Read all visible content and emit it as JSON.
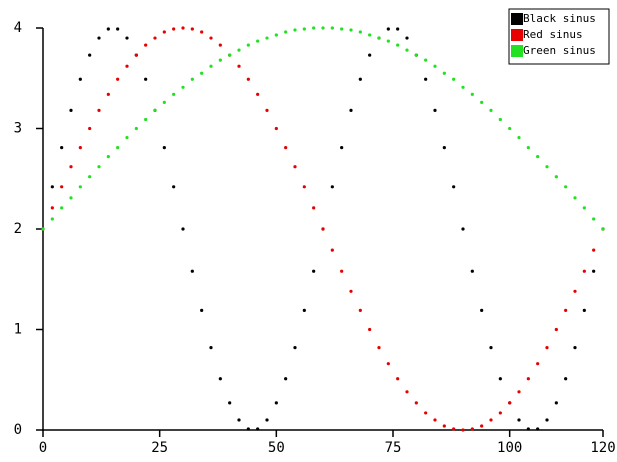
{
  "chart_data": {
    "type": "scatter",
    "x": [
      0,
      2,
      4,
      6,
      8,
      10,
      12,
      14,
      16,
      18,
      20,
      22,
      24,
      26,
      28,
      30,
      32,
      34,
      36,
      38,
      40,
      42,
      44,
      46,
      48,
      50,
      52,
      54,
      56,
      58,
      60,
      62,
      64,
      66,
      68,
      70,
      72,
      74,
      76,
      78,
      80,
      82,
      84,
      86,
      88,
      90,
      92,
      94,
      96,
      98,
      100,
      102,
      104,
      106,
      108,
      110,
      112,
      114,
      116,
      118,
      120
    ],
    "series": [
      {
        "name": "Black sinus",
        "color": "#000000",
        "values": [
          2,
          2.42,
          2.81,
          3.18,
          3.49,
          3.73,
          3.9,
          3.99,
          3.99,
          3.9,
          3.73,
          3.49,
          3.18,
          2.81,
          2.42,
          2,
          1.58,
          1.19,
          0.82,
          0.51,
          0.27,
          0.1,
          0.01,
          0.01,
          0.1,
          0.27,
          0.51,
          0.82,
          1.19,
          1.58,
          2,
          2.42,
          2.81,
          3.18,
          3.49,
          3.73,
          3.9,
          3.99,
          3.99,
          3.9,
          3.73,
          3.49,
          3.18,
          2.81,
          2.42,
          2,
          1.58,
          1.19,
          0.82,
          0.51,
          0.27,
          0.1,
          0.01,
          0.01,
          0.1,
          0.27,
          0.51,
          0.82,
          1.19,
          1.58,
          2
        ]
      },
      {
        "name": "Red sinus",
        "color": "#e60000",
        "values": [
          2,
          2.21,
          2.42,
          2.62,
          2.81,
          3,
          3.18,
          3.34,
          3.49,
          3.62,
          3.73,
          3.83,
          3.9,
          3.96,
          3.99,
          4,
          3.99,
          3.96,
          3.9,
          3.83,
          3.73,
          3.62,
          3.49,
          3.34,
          3.18,
          3,
          2.81,
          2.62,
          2.42,
          2.21,
          2,
          1.79,
          1.58,
          1.38,
          1.19,
          1,
          0.82,
          0.66,
          0.51,
          0.38,
          0.27,
          0.17,
          0.1,
          0.04,
          0.01,
          0,
          0.01,
          0.04,
          0.1,
          0.17,
          0.27,
          0.38,
          0.51,
          0.66,
          0.82,
          1,
          1.19,
          1.38,
          1.58,
          1.79,
          2
        ]
      },
      {
        "name": "Green sinus",
        "color": "#22e022",
        "values": [
          2,
          2.1,
          2.21,
          2.31,
          2.42,
          2.52,
          2.62,
          2.72,
          2.81,
          2.91,
          3,
          3.09,
          3.18,
          3.26,
          3.34,
          3.41,
          3.49,
          3.55,
          3.62,
          3.68,
          3.73,
          3.78,
          3.83,
          3.87,
          3.9,
          3.93,
          3.96,
          3.98,
          3.99,
          4,
          4,
          4,
          3.99,
          3.98,
          3.96,
          3.93,
          3.9,
          3.87,
          3.83,
          3.78,
          3.73,
          3.68,
          3.62,
          3.55,
          3.49,
          3.41,
          3.34,
          3.26,
          3.18,
          3.09,
          3,
          2.91,
          2.81,
          2.72,
          2.62,
          2.52,
          2.42,
          2.31,
          2.21,
          2.1,
          2
        ]
      }
    ],
    "xlim": [
      0,
      120
    ],
    "ylim": [
      0,
      4
    ],
    "xticks": [
      0,
      25,
      50,
      75,
      100,
      120
    ],
    "yticks": [
      0,
      1,
      2,
      3,
      4
    ],
    "legend": "upper right",
    "grid": false
  }
}
